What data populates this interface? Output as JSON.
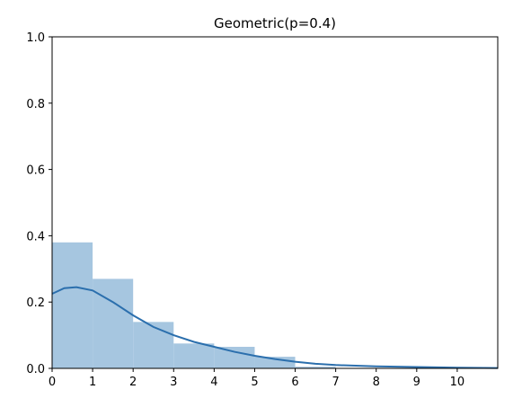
{
  "chart_data": {
    "type": "bar",
    "title": "Geometric(p=0.4)",
    "xlabel": "",
    "ylabel": "",
    "xlim": [
      0,
      11
    ],
    "ylim": [
      0,
      1.0
    ],
    "x_ticks": [
      "0",
      "1",
      "2",
      "3",
      "4",
      "5",
      "6",
      "7",
      "8",
      "9",
      "10"
    ],
    "y_ticks": [
      "0.0",
      "0.2",
      "0.4",
      "0.6",
      "0.8",
      "1.0"
    ],
    "histogram": {
      "bins": [
        [
          0,
          1
        ],
        [
          1,
          2
        ],
        [
          2,
          3
        ],
        [
          3,
          4
        ],
        [
          4,
          5
        ],
        [
          5,
          6
        ],
        [
          6,
          7
        ]
      ],
      "values": [
        0.38,
        0.27,
        0.14,
        0.075,
        0.065,
        0.035,
        0.005
      ],
      "color": "#a6c6e0"
    },
    "density_curve": {
      "x": [
        0,
        0.3,
        0.6,
        1.0,
        1.5,
        2.0,
        2.5,
        3.0,
        3.5,
        4.0,
        4.5,
        5.0,
        5.5,
        6.0,
        6.5,
        7.0,
        8.0,
        9.0,
        10.0,
        11.0
      ],
      "y": [
        0.225,
        0.242,
        0.245,
        0.235,
        0.2,
        0.16,
        0.125,
        0.1,
        0.08,
        0.065,
        0.05,
        0.038,
        0.028,
        0.02,
        0.014,
        0.01,
        0.006,
        0.004,
        0.002,
        0.001
      ],
      "color": "#2b6fad"
    },
    "grid": false,
    "legend": "none"
  }
}
